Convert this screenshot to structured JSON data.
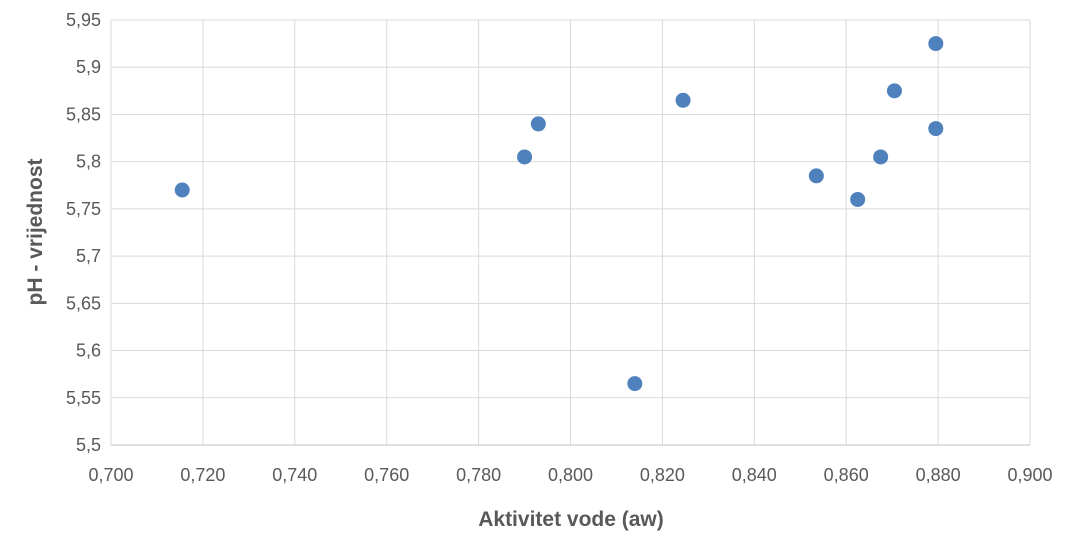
{
  "chart_data": {
    "type": "scatter",
    "xlabel": "Aktivitet vode (aw)",
    "ylabel": "pH - vrijednost",
    "xlim": [
      0.7,
      0.9
    ],
    "ylim": [
      5.5,
      5.95
    ],
    "x_ticks": [
      0.7,
      0.72,
      0.74,
      0.76,
      0.78,
      0.8,
      0.82,
      0.84,
      0.86,
      0.88,
      0.9
    ],
    "x_tick_labels": [
      "0,700",
      "0,720",
      "0,740",
      "0,760",
      "0,780",
      "0,800",
      "0,820",
      "0,840",
      "0,860",
      "0,880",
      "0,900"
    ],
    "y_ticks": [
      5.5,
      5.55,
      5.6,
      5.65,
      5.7,
      5.75,
      5.8,
      5.85,
      5.9,
      5.95
    ],
    "y_tick_labels": [
      "5,5",
      "5,55",
      "5,6",
      "5,65",
      "5,7",
      "5,75",
      "5,8",
      "5,85",
      "5,9",
      "5,95"
    ],
    "grid": true,
    "legend": "none",
    "marker_color": "#4f81bd",
    "series": [
      {
        "points": [
          {
            "x": 0.7155,
            "y": 5.77
          },
          {
            "x": 0.79,
            "y": 5.805
          },
          {
            "x": 0.793,
            "y": 5.84
          },
          {
            "x": 0.814,
            "y": 5.565
          },
          {
            "x": 0.8245,
            "y": 5.865
          },
          {
            "x": 0.8535,
            "y": 5.785
          },
          {
            "x": 0.8625,
            "y": 5.76
          },
          {
            "x": 0.8675,
            "y": 5.805
          },
          {
            "x": 0.8705,
            "y": 5.875
          },
          {
            "x": 0.8795,
            "y": 5.835
          },
          {
            "x": 0.8795,
            "y": 5.925
          }
        ]
      }
    ]
  }
}
